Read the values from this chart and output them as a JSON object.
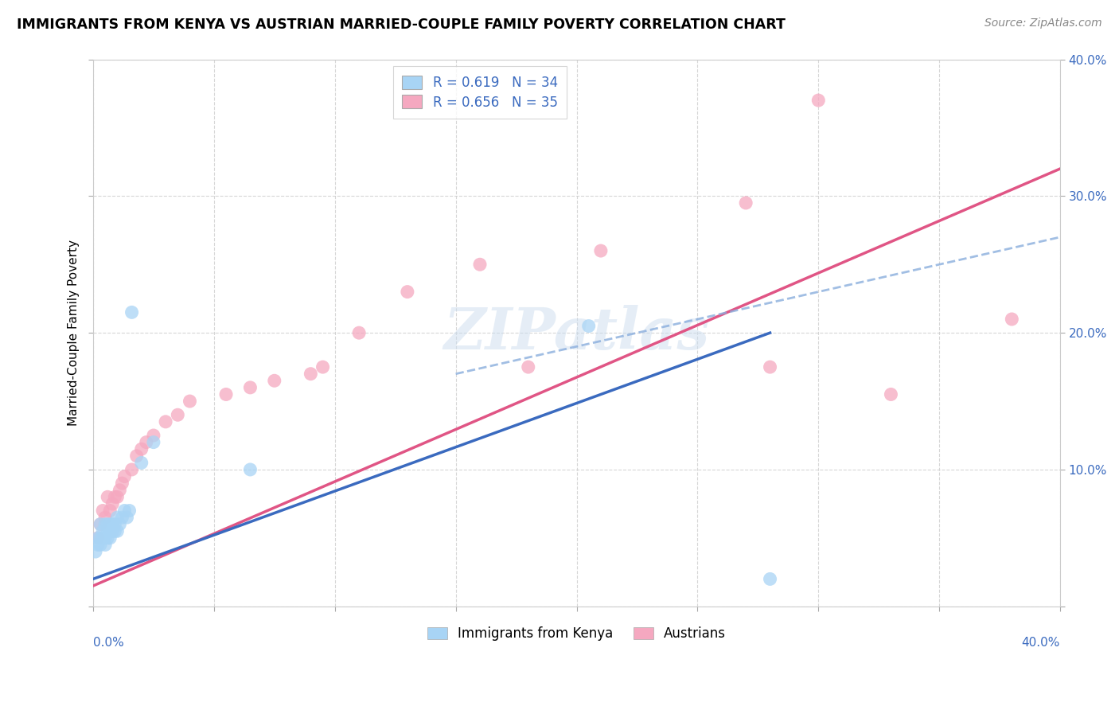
{
  "title": "IMMIGRANTS FROM KENYA VS AUSTRIAN MARRIED-COUPLE FAMILY POVERTY CORRELATION CHART",
  "source": "Source: ZipAtlas.com",
  "ylabel": "Married-Couple Family Poverty",
  "xlim": [
    0,
    0.4
  ],
  "ylim": [
    0,
    0.4
  ],
  "legend_r1": "R = 0.619",
  "legend_n1": "N = 34",
  "legend_r2": "R = 0.656",
  "legend_n2": "N = 35",
  "color_kenya": "#a8d4f5",
  "color_austria": "#f5a8c0",
  "color_kenya_line": "#3a6abf",
  "color_austria_line": "#e05585",
  "color_dash": "#8aaedd",
  "watermark": "ZIPatlas",
  "kenya_scatter_x": [
    0.001,
    0.002,
    0.002,
    0.003,
    0.003,
    0.003,
    0.004,
    0.004,
    0.005,
    0.005,
    0.005,
    0.006,
    0.006,
    0.006,
    0.007,
    0.007,
    0.007,
    0.008,
    0.008,
    0.009,
    0.009,
    0.01,
    0.01,
    0.011,
    0.012,
    0.013,
    0.014,
    0.015,
    0.016,
    0.02,
    0.025,
    0.065,
    0.205,
    0.28
  ],
  "kenya_scatter_y": [
    0.04,
    0.045,
    0.05,
    0.045,
    0.05,
    0.06,
    0.05,
    0.055,
    0.045,
    0.05,
    0.06,
    0.05,
    0.055,
    0.06,
    0.05,
    0.055,
    0.06,
    0.055,
    0.06,
    0.055,
    0.06,
    0.055,
    0.065,
    0.06,
    0.065,
    0.07,
    0.065,
    0.07,
    0.215,
    0.105,
    0.12,
    0.1,
    0.205,
    0.02
  ],
  "austria_scatter_x": [
    0.002,
    0.003,
    0.004,
    0.005,
    0.006,
    0.007,
    0.008,
    0.009,
    0.01,
    0.011,
    0.012,
    0.013,
    0.016,
    0.018,
    0.02,
    0.022,
    0.025,
    0.03,
    0.035,
    0.04,
    0.055,
    0.065,
    0.075,
    0.09,
    0.095,
    0.11,
    0.13,
    0.16,
    0.18,
    0.21,
    0.27,
    0.28,
    0.3,
    0.33,
    0.38
  ],
  "austria_scatter_y": [
    0.05,
    0.06,
    0.07,
    0.065,
    0.08,
    0.07,
    0.075,
    0.08,
    0.08,
    0.085,
    0.09,
    0.095,
    0.1,
    0.11,
    0.115,
    0.12,
    0.125,
    0.135,
    0.14,
    0.15,
    0.155,
    0.16,
    0.165,
    0.17,
    0.175,
    0.2,
    0.23,
    0.25,
    0.175,
    0.26,
    0.295,
    0.175,
    0.37,
    0.155,
    0.21
  ],
  "kenya_line_x0": 0.0,
  "kenya_line_y0": 0.02,
  "kenya_line_x1": 0.28,
  "kenya_line_y1": 0.2,
  "austria_line_x0": 0.0,
  "austria_line_y0": 0.015,
  "austria_line_x1": 0.4,
  "austria_line_y1": 0.32,
  "dash_line_x0": 0.15,
  "dash_line_y0": 0.17,
  "dash_line_x1": 0.4,
  "dash_line_y1": 0.27
}
